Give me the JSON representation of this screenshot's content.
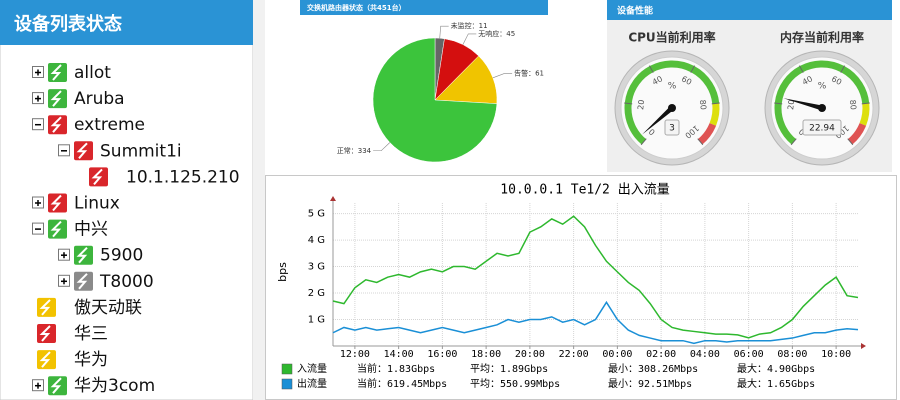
{
  "sidebar": {
    "title": "设备列表状态",
    "tree": [
      {
        "label": "allot",
        "depth": 0,
        "expanded": false,
        "icon": "#3db53d"
      },
      {
        "label": "Aruba",
        "depth": 0,
        "expanded": false,
        "icon": "#3db53d"
      },
      {
        "label": "extreme",
        "depth": 0,
        "expanded": true,
        "icon": "#d9262b"
      },
      {
        "label": "Summit1i",
        "depth": 1,
        "expanded": true,
        "icon": "#d9262b"
      },
      {
        "label": "10.1.125.210",
        "depth": 2,
        "icon": "#d9262b"
      },
      {
        "label": "Linux",
        "depth": 0,
        "expanded": false,
        "icon": "#d9262b"
      },
      {
        "label": "中兴",
        "depth": 0,
        "expanded": true,
        "icon": "#3db53d"
      },
      {
        "label": "5900",
        "depth": 1,
        "expanded": false,
        "icon": "#3db53d"
      },
      {
        "label": "T8000",
        "depth": 1,
        "expanded": false,
        "icon": "#8a8a8a"
      },
      {
        "label": "傲天动联",
        "depth": 0,
        "icon": "#f2c200"
      },
      {
        "label": "华三",
        "depth": 0,
        "icon": "#d9262b"
      },
      {
        "label": "华为",
        "depth": 0,
        "icon": "#f2c200"
      },
      {
        "label": "华为3com",
        "depth": 0,
        "expanded": false,
        "icon": "#3db53d"
      }
    ]
  },
  "performance_panel": {
    "title": "设备性能"
  },
  "chart_data": [
    {
      "type": "pie",
      "title": "交换机路由器状态（共451台）",
      "values": [
        11,
        45,
        61,
        334
      ],
      "value_labels": [
        "未监控：11",
        "无响应：45",
        "告警：61",
        "正常：334"
      ],
      "colors": [
        "#666666",
        "#d40f0f",
        "#f0c400",
        "#3cc43c"
      ]
    },
    {
      "type": "gauge",
      "title": "CPU当前利用率",
      "value": 3,
      "unit": "%",
      "ylim": [
        0,
        100
      ],
      "yticks": [
        0,
        20,
        40,
        60,
        80,
        100
      ],
      "bands": [
        {
          "from": 0,
          "to": 80,
          "color": "#55bf3b"
        },
        {
          "from": 80,
          "to": 90,
          "color": "#dddf0d"
        },
        {
          "from": 90,
          "to": 100,
          "color": "#df5353"
        }
      ]
    },
    {
      "type": "gauge",
      "title": "内存当前利用率",
      "value": 22.94,
      "unit": "%",
      "ylim": [
        0,
        100
      ],
      "yticks": [
        0,
        20,
        40,
        60,
        80,
        100
      ],
      "bands": [
        {
          "from": 0,
          "to": 80,
          "color": "#55bf3b"
        },
        {
          "from": 80,
          "to": 90,
          "color": "#dddf0d"
        },
        {
          "from": 90,
          "to": 100,
          "color": "#df5353"
        }
      ]
    },
    {
      "type": "line",
      "title": "10.0.0.1 Te1/2 出入流量",
      "ylabel": "bps",
      "xlim": [
        "11:00",
        "11:00"
      ],
      "xticks": [
        "12:00",
        "14:00",
        "16:00",
        "18:00",
        "20:00",
        "22:00",
        "00:00",
        "02:00",
        "04:00",
        "06:00",
        "08:00",
        "10:00"
      ],
      "ylim": [
        0,
        5400000000
      ],
      "yticks": [
        {
          "value": 1000000000,
          "label": "1 G"
        },
        {
          "value": 2000000000,
          "label": "2 G"
        },
        {
          "value": 3000000000,
          "label": "3 G"
        },
        {
          "value": 4000000000,
          "label": "4 G"
        },
        {
          "value": 5000000000,
          "label": "5 G"
        }
      ],
      "grid": true,
      "x": [
        "11:00",
        "11:30",
        "12:00",
        "12:30",
        "13:00",
        "13:30",
        "14:00",
        "14:30",
        "15:00",
        "15:30",
        "16:00",
        "16:30",
        "17:00",
        "17:30",
        "18:00",
        "18:30",
        "19:00",
        "19:30",
        "20:00",
        "20:30",
        "21:00",
        "21:30",
        "22:00",
        "22:30",
        "23:00",
        "23:30",
        "00:00",
        "00:30",
        "01:00",
        "01:30",
        "02:00",
        "02:30",
        "03:00",
        "03:30",
        "04:00",
        "04:30",
        "05:00",
        "05:30",
        "06:00",
        "06:30",
        "07:00",
        "07:30",
        "08:00",
        "08:30",
        "09:00",
        "09:30",
        "10:00",
        "10:30",
        "11:00"
      ],
      "series": [
        {
          "name": "入流量",
          "color": "#2eb82e",
          "stats": [
            "当前：1.83Gbps",
            "平均：1.89Gbps",
            "最小：308.26Mbps",
            "最大：4.90Gbps"
          ],
          "values": [
            1700000000,
            1600000000,
            2200000000,
            2500000000,
            2400000000,
            2600000000,
            2700000000,
            2600000000,
            2800000000,
            2900000000,
            2800000000,
            3000000000,
            3000000000,
            2900000000,
            3200000000,
            3500000000,
            3400000000,
            3500000000,
            4300000000,
            4500000000,
            4800000000,
            4600000000,
            4900000000,
            4500000000,
            3800000000,
            3200000000,
            2800000000,
            2400000000,
            2100000000,
            1600000000,
            1000000000,
            700000000,
            600000000,
            550000000,
            500000000,
            450000000,
            450000000,
            420000000,
            310000000,
            450000000,
            500000000,
            700000000,
            1000000000,
            1500000000,
            1900000000,
            2300000000,
            2600000000,
            1900000000,
            1830000000
          ]
        },
        {
          "name": "出流量",
          "color": "#1a8fd6",
          "stats": [
            "当前：619.45Mbps",
            "平均：550.99Mbps",
            "最小：92.51Mbps",
            "最大：1.65Gbps"
          ],
          "values": [
            500000000,
            700000000,
            600000000,
            700000000,
            600000000,
            650000000,
            700000000,
            600000000,
            500000000,
            600000000,
            700000000,
            600000000,
            500000000,
            600000000,
            700000000,
            800000000,
            1000000000,
            900000000,
            1000000000,
            1000000000,
            1100000000,
            900000000,
            1000000000,
            800000000,
            1000000000,
            1650000000,
            1000000000,
            600000000,
            400000000,
            300000000,
            200000000,
            200000000,
            200000000,
            100000000,
            200000000,
            200000000,
            150000000,
            200000000,
            200000000,
            200000000,
            200000000,
            250000000,
            300000000,
            400000000,
            500000000,
            500000000,
            600000000,
            650000000,
            620000000
          ]
        }
      ]
    }
  ]
}
